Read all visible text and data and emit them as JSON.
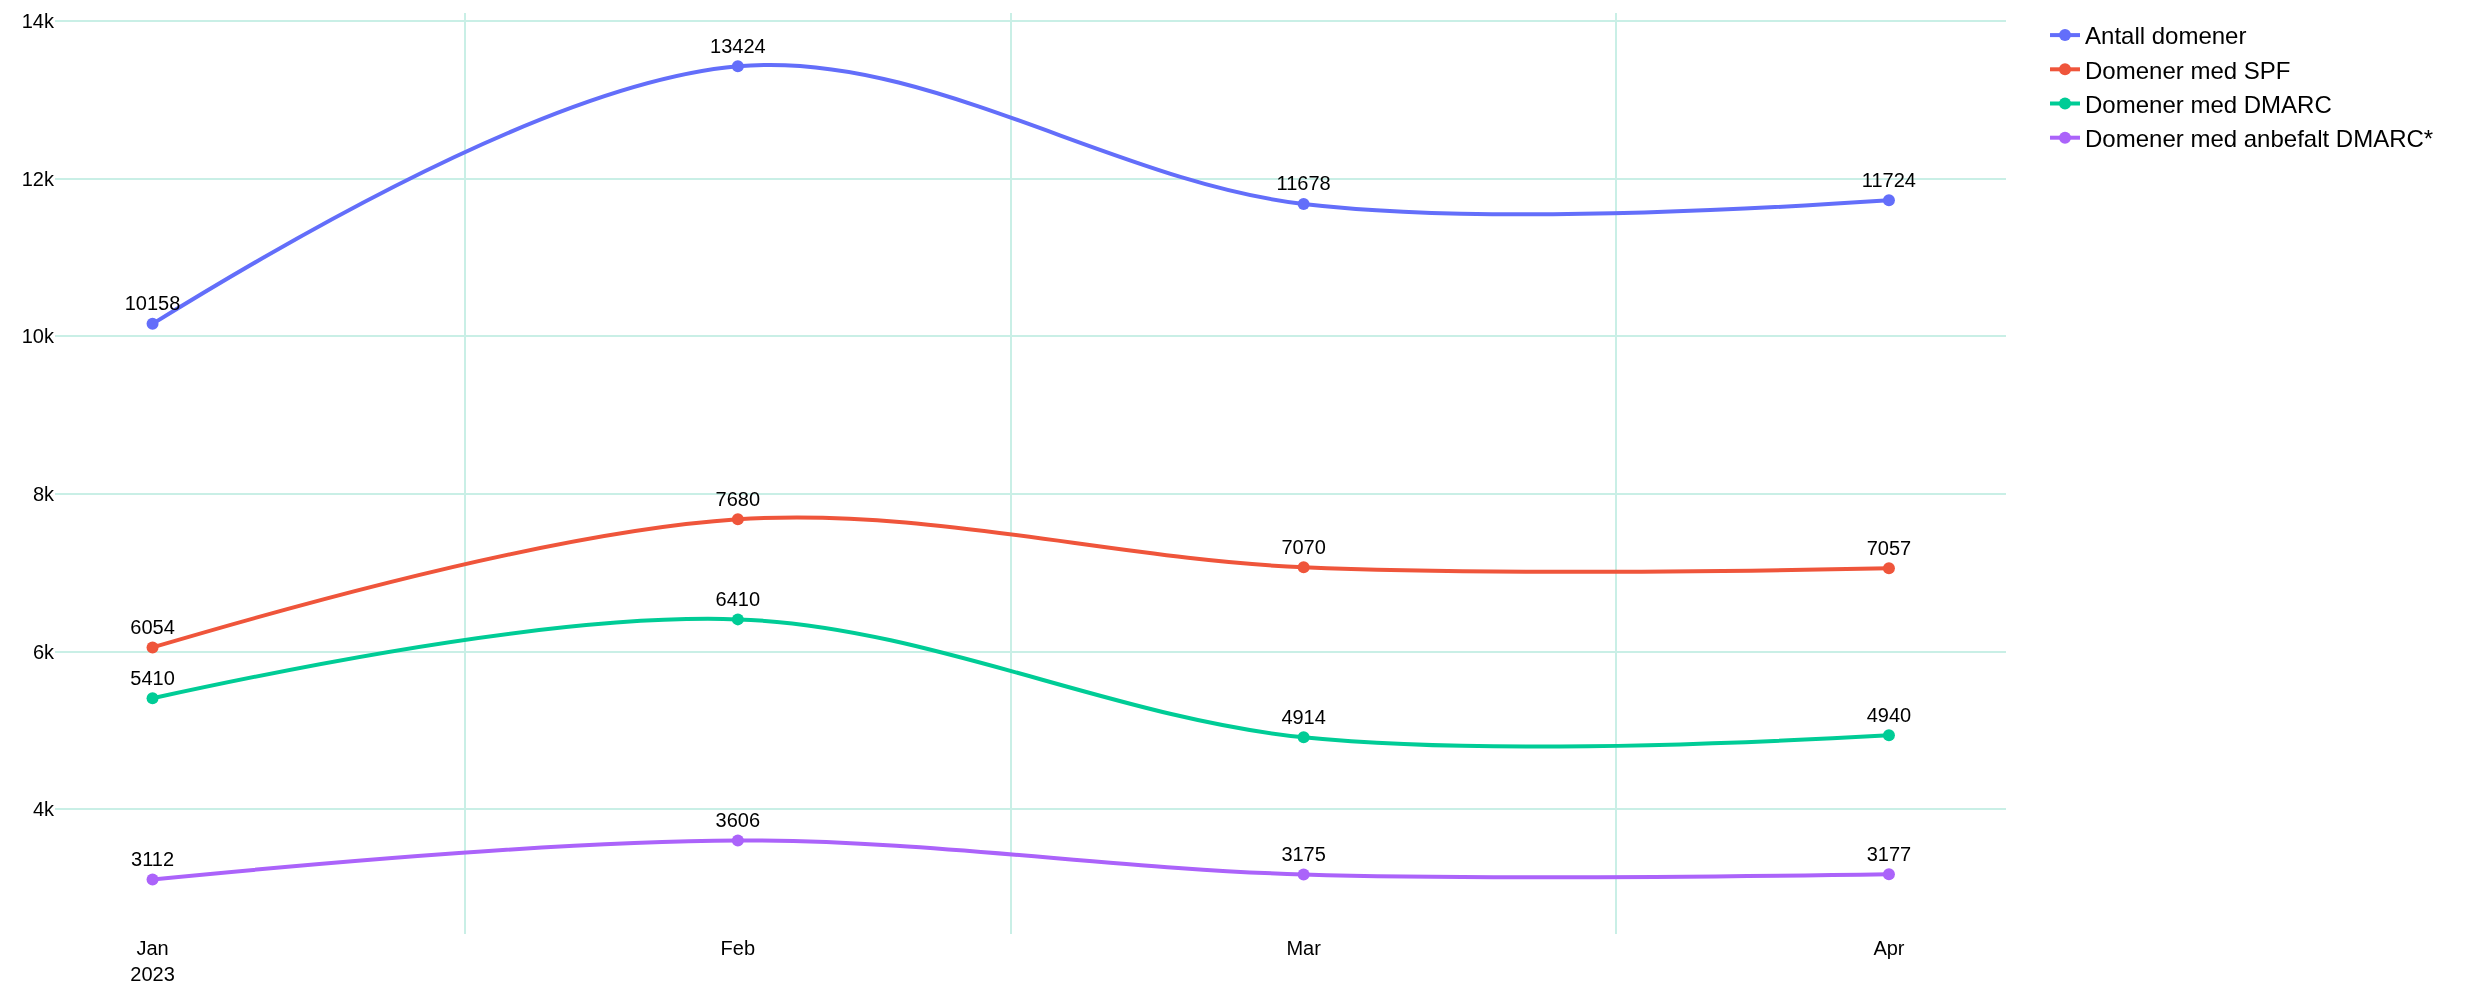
{
  "chart_data": {
    "type": "line",
    "x": [
      "2023-01-16",
      "2023-02-15",
      "2023-03-16",
      "2023-04-15"
    ],
    "xlim": [
      "2023-01-11",
      "2023-04-21"
    ],
    "xticks": [
      {
        "value": "2023-01-16",
        "label": "Jan\n2023"
      },
      {
        "value": "2023-02-15",
        "label": "Feb"
      },
      {
        "value": "2023-03-16",
        "label": "Mar"
      },
      {
        "value": "2023-04-15",
        "label": "Apr"
      }
    ],
    "ylim": [
      2420,
      14100
    ],
    "yticks": [
      {
        "value": 4000,
        "label": "4k"
      },
      {
        "value": 6000,
        "label": "6k"
      },
      {
        "value": 8000,
        "label": "8k"
      },
      {
        "value": 10000,
        "label": "10k"
      },
      {
        "value": 12000,
        "label": "12k"
      },
      {
        "value": 14000,
        "label": "14k"
      }
    ],
    "series": [
      {
        "name": "Antall domener",
        "color": "#636efa",
        "values": [
          10158,
          13424,
          11678,
          11724
        ]
      },
      {
        "name": "Domener med SPF",
        "color": "#ef553b",
        "values": [
          6054,
          7680,
          7070,
          7057
        ]
      },
      {
        "name": "Domener med DMARC",
        "color": "#00cc96",
        "values": [
          5410,
          6410,
          4914,
          4940
        ]
      },
      {
        "name": "Domener med anbefalt DMARC*",
        "color": "#ab63fa",
        "values": [
          3112,
          3606,
          3175,
          3177
        ]
      }
    ],
    "data_labels": true,
    "grid": true,
    "legend": "top right",
    "marker": "circle",
    "line_style": "solid"
  }
}
